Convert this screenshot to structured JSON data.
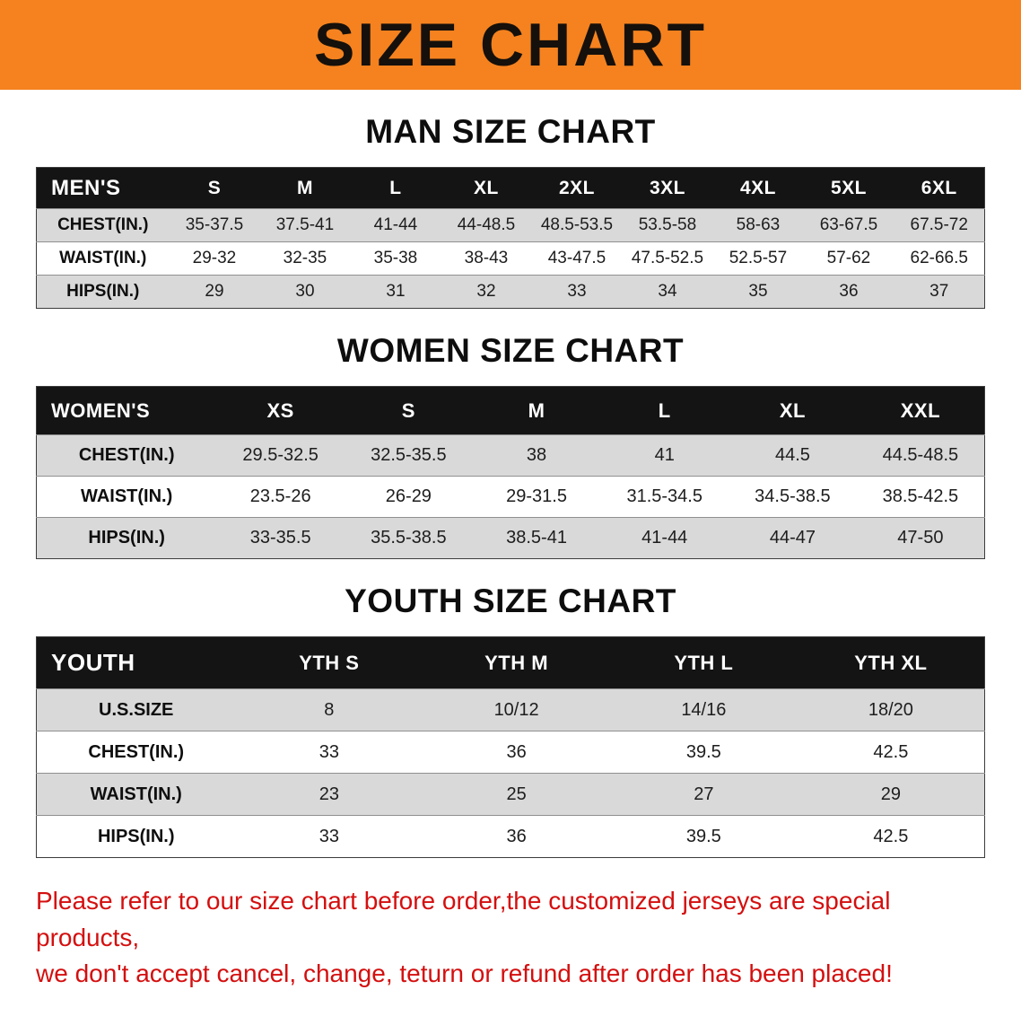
{
  "colors": {
    "banner_bg": "#f5821f",
    "header_bg": "#141414",
    "stripe_bg": "#d9d9d9",
    "disclaimer_red": "#d40f0f"
  },
  "banner": {
    "title": "SIZE CHART"
  },
  "sections": [
    {
      "heading": "MAN SIZE CHART",
      "table": {
        "header": [
          "MEN'S",
          "S",
          "M",
          "L",
          "XL",
          "2XL",
          "3XL",
          "4XL",
          "5XL",
          "6XL"
        ],
        "rows": [
          [
            "CHEST(IN.)",
            "35-37.5",
            "37.5-41",
            "41-44",
            "44-48.5",
            "48.5-53.5",
            "53.5-58",
            "58-63",
            "63-67.5",
            "67.5-72"
          ],
          [
            "WAIST(IN.)",
            "29-32",
            "32-35",
            "35-38",
            "38-43",
            "43-47.5",
            "47.5-52.5",
            "52.5-57",
            "57-62",
            "62-66.5"
          ],
          [
            "HIPS(IN.)",
            "29",
            "30",
            "31",
            "32",
            "33",
            "34",
            "35",
            "36",
            "37"
          ]
        ]
      }
    },
    {
      "heading": "WOMEN SIZE CHART",
      "table": {
        "header": [
          "WOMEN'S",
          "XS",
          "S",
          "M",
          "L",
          "XL",
          "XXL"
        ],
        "rows": [
          [
            "CHEST(IN.)",
            "29.5-32.5",
            "32.5-35.5",
            "38",
            "41",
            "44.5",
            "44.5-48.5"
          ],
          [
            "WAIST(IN.)",
            "23.5-26",
            "26-29",
            "29-31.5",
            "31.5-34.5",
            "34.5-38.5",
            "38.5-42.5"
          ],
          [
            "HIPS(IN.)",
            "33-35.5",
            "35.5-38.5",
            "38.5-41",
            "41-44",
            "44-47",
            "47-50"
          ]
        ]
      }
    },
    {
      "heading": "YOUTH SIZE CHART",
      "table": {
        "header": [
          "YOUTH",
          "YTH S",
          "YTH M",
          "YTH L",
          "YTH XL"
        ],
        "rows": [
          [
            "U.S.SIZE",
            "8",
            "10/12",
            "14/16",
            "18/20"
          ],
          [
            "CHEST(IN.)",
            "33",
            "36",
            "39.5",
            "42.5"
          ],
          [
            "WAIST(IN.)",
            "23",
            "25",
            "27",
            "29"
          ],
          [
            "HIPS(IN.)",
            "33",
            "36",
            "39.5",
            "42.5"
          ]
        ]
      }
    }
  ],
  "disclaimer": {
    "line1": "Please refer to our size chart before order,the customized jerseys are special products,",
    "line2": "we don't accept cancel, change, teturn or refund after order has been placed!"
  }
}
